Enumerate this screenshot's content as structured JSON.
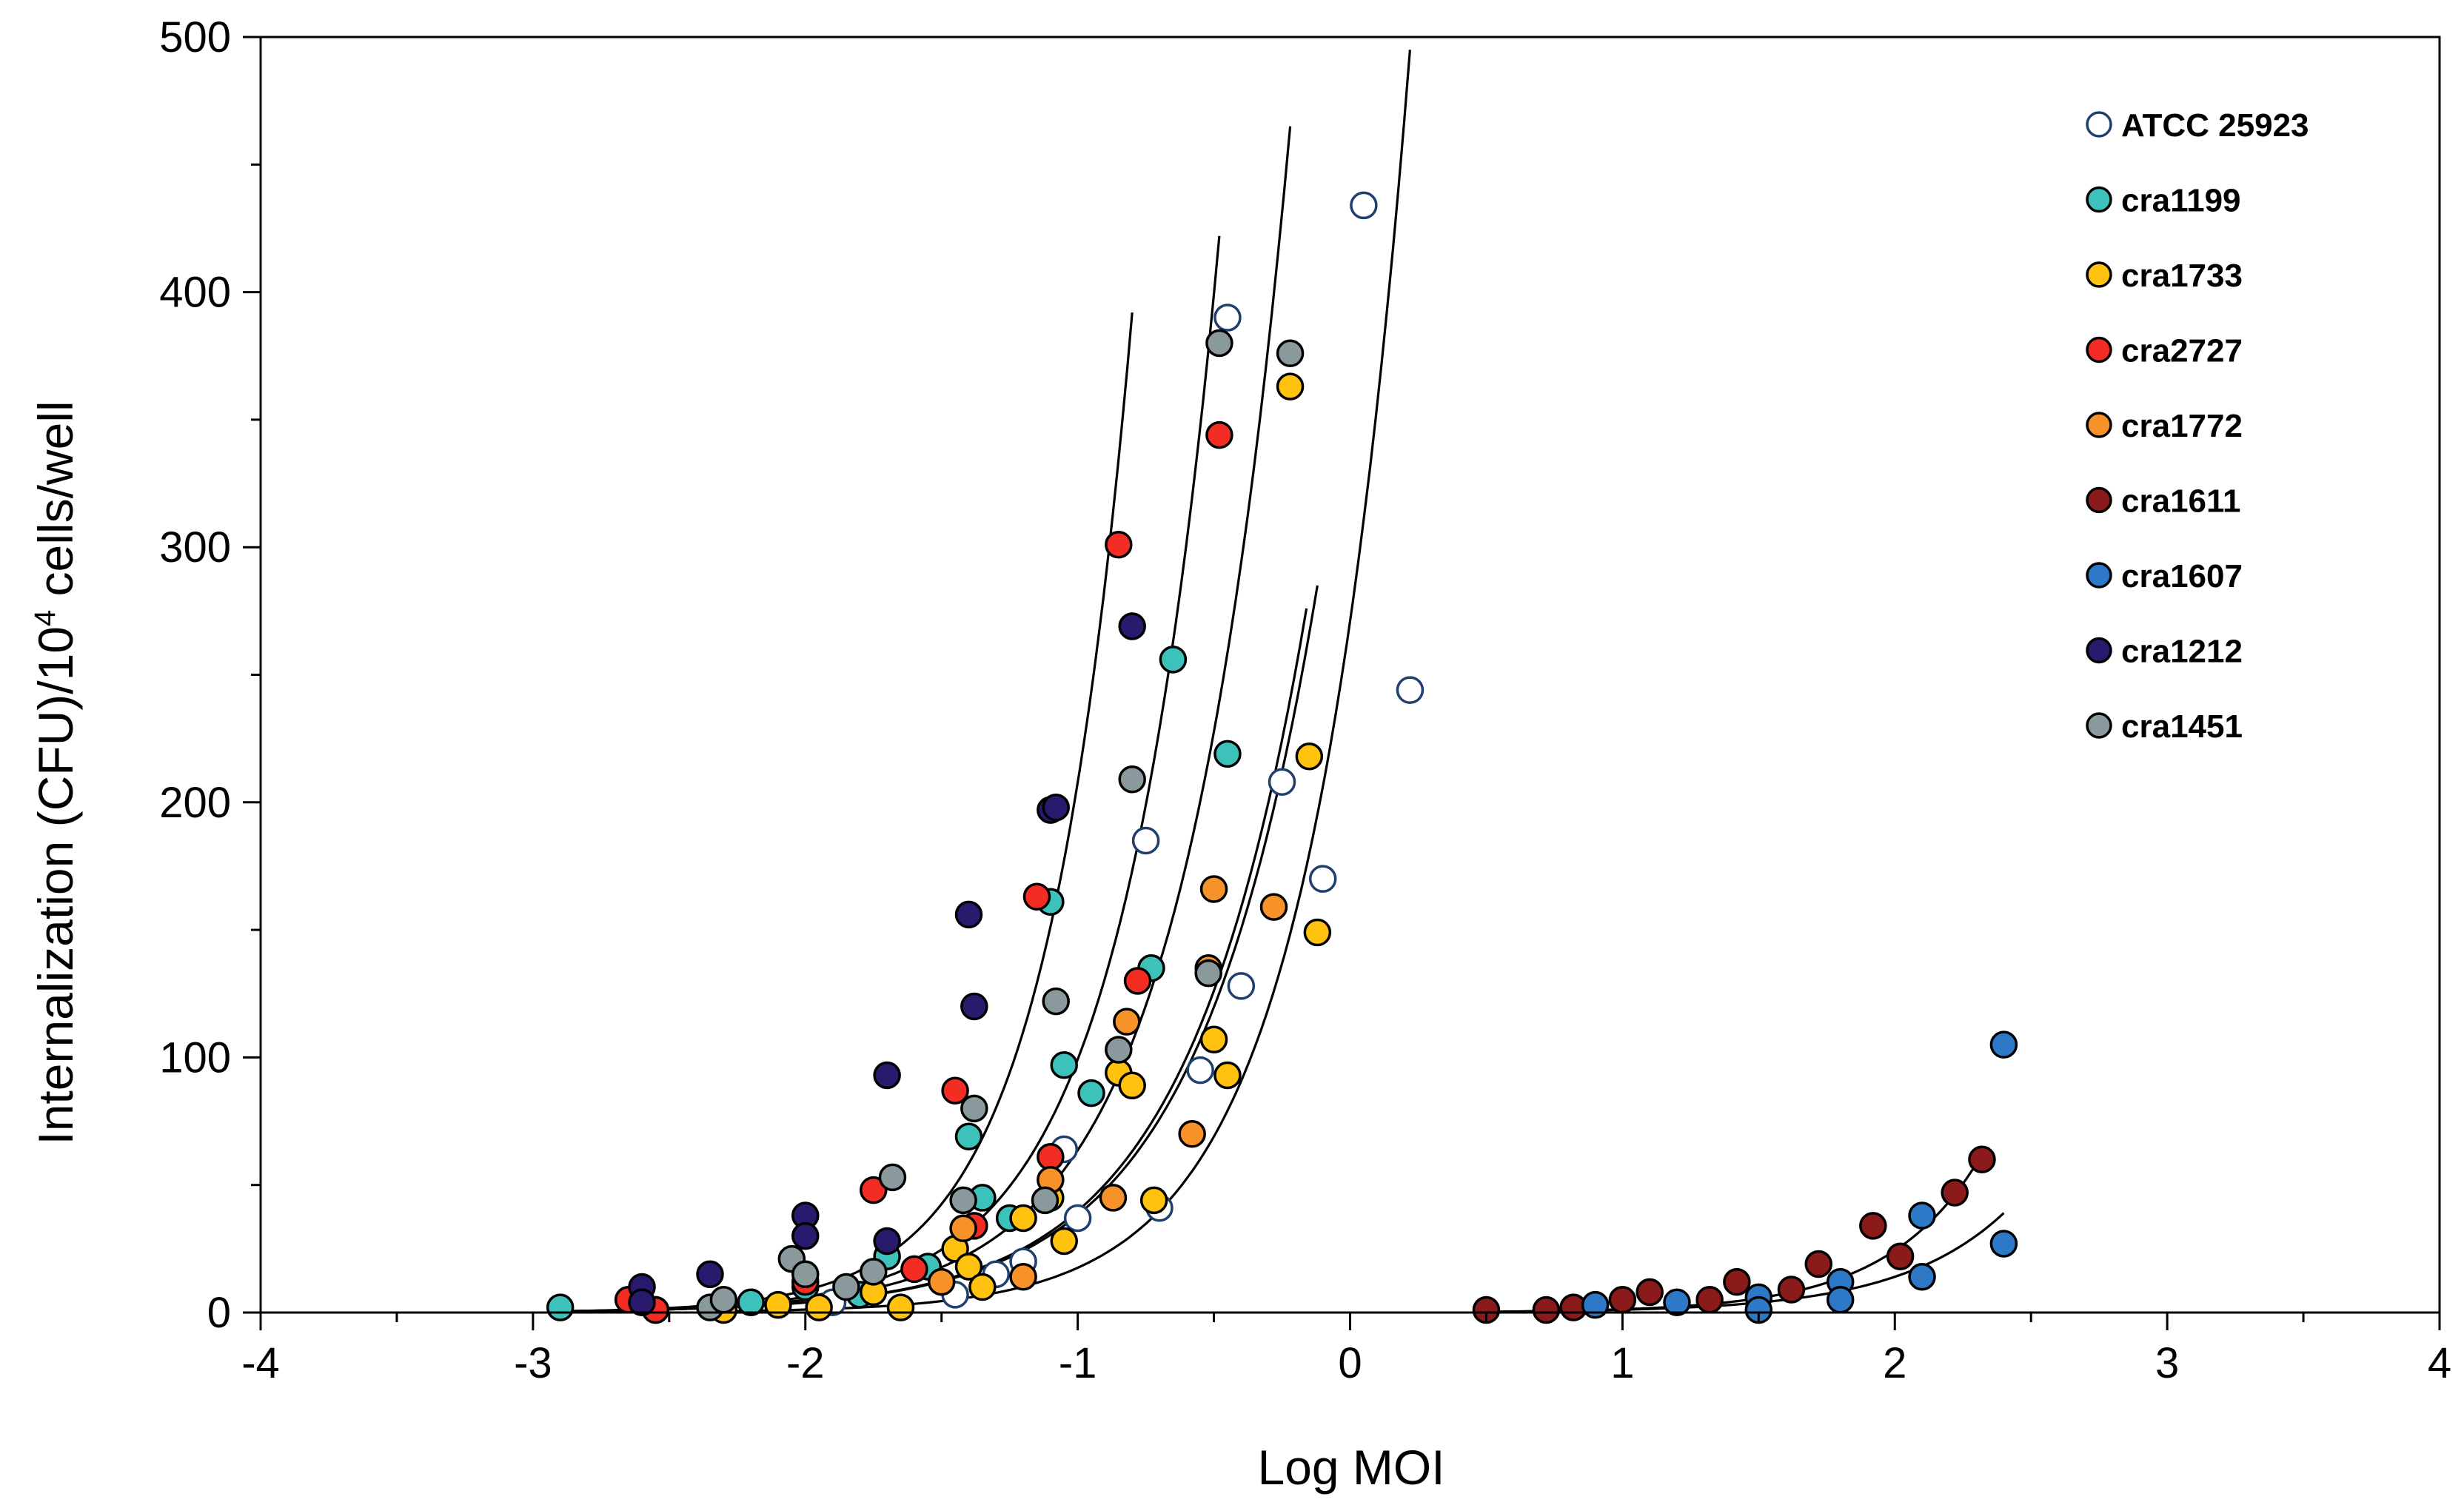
{
  "chart_data": {
    "type": "scatter",
    "xlabel": "Log MOI",
    "ylabel": {
      "prefix": "Internalization (CFU)/10",
      "superscript": "4",
      "suffix": " cells/well"
    },
    "xlim": [
      -4,
      4
    ],
    "ylim": [
      0,
      500
    ],
    "x_ticks": [
      -4,
      -3,
      -2,
      -1,
      0,
      1,
      2,
      3,
      4
    ],
    "x_tick_labels": [
      "-4",
      "-3",
      "-2",
      "-1",
      "0",
      "1",
      "2",
      "3",
      "4"
    ],
    "y_ticks": [
      0,
      100,
      200,
      300,
      400,
      500
    ],
    "y_tick_labels": [
      "0",
      "100",
      "200",
      "300",
      "400",
      "500"
    ],
    "grid": false,
    "legend_position": "top-right",
    "series": [
      {
        "name": "ATCC 25923",
        "color": "#ffffff",
        "stroke": "#1f3f6e",
        "points": [
          [
            -1.45,
            7
          ],
          [
            -1.3,
            15
          ],
          [
            -1.2,
            20
          ],
          [
            -1.05,
            64
          ],
          [
            -1.0,
            37
          ],
          [
            -0.75,
            185
          ],
          [
            -0.7,
            41
          ],
          [
            -0.55,
            95
          ],
          [
            -0.45,
            390
          ],
          [
            -0.4,
            128
          ],
          [
            -0.25,
            208
          ],
          [
            -0.1,
            170
          ],
          [
            0.05,
            434
          ],
          [
            0.22,
            244
          ],
          [
            -2.3,
            2
          ],
          [
            -1.9,
            4
          ]
        ]
      },
      {
        "name": "cra1199",
        "color": "#3cc2bb",
        "stroke": "#000000",
        "points": [
          [
            -2.9,
            2
          ],
          [
            -2.55,
            1
          ],
          [
            -2.2,
            4
          ],
          [
            -2.0,
            10
          ],
          [
            -1.8,
            7
          ],
          [
            -1.7,
            22
          ],
          [
            -1.55,
            18
          ],
          [
            -1.4,
            69
          ],
          [
            -1.35,
            45
          ],
          [
            -1.25,
            37
          ],
          [
            -1.1,
            161
          ],
          [
            -1.05,
            97
          ],
          [
            -0.95,
            86
          ],
          [
            -0.73,
            135
          ],
          [
            -0.65,
            256
          ],
          [
            -0.45,
            219
          ]
        ]
      },
      {
        "name": "cra1733",
        "color": "#ffc20e",
        "stroke": "#000000",
        "points": [
          [
            -2.3,
            1
          ],
          [
            -2.1,
            3
          ],
          [
            -1.95,
            2
          ],
          [
            -1.75,
            8
          ],
          [
            -1.65,
            2
          ],
          [
            -1.45,
            25
          ],
          [
            -1.4,
            18
          ],
          [
            -1.35,
            10
          ],
          [
            -1.2,
            37
          ],
          [
            -1.1,
            45
          ],
          [
            -1.05,
            28
          ],
          [
            -0.85,
            94
          ],
          [
            -0.8,
            89
          ],
          [
            -0.72,
            44
          ],
          [
            -0.5,
            107
          ],
          [
            -0.45,
            93
          ],
          [
            -0.22,
            363
          ],
          [
            -0.15,
            218
          ],
          [
            -0.12,
            149
          ]
        ]
      },
      {
        "name": "cra2727",
        "color": "#f32c24",
        "stroke": "#000000",
        "points": [
          [
            -2.65,
            5
          ],
          [
            -2.55,
            1
          ],
          [
            -2.0,
            12
          ],
          [
            -1.75,
            48
          ],
          [
            -1.6,
            17
          ],
          [
            -1.45,
            87
          ],
          [
            -1.38,
            34
          ],
          [
            -1.15,
            163
          ],
          [
            -1.1,
            61
          ],
          [
            -0.85,
            301
          ],
          [
            -0.78,
            130
          ],
          [
            -0.48,
            344
          ]
        ]
      },
      {
        "name": "cra1772",
        "color": "#f7922a",
        "stroke": "#000000",
        "points": [
          [
            -1.5,
            12
          ],
          [
            -1.42,
            33
          ],
          [
            -1.2,
            14
          ],
          [
            -1.1,
            52
          ],
          [
            -0.87,
            45
          ],
          [
            -0.82,
            114
          ],
          [
            -0.58,
            70
          ],
          [
            -0.52,
            135
          ],
          [
            -0.5,
            166
          ],
          [
            -0.28,
            159
          ]
        ]
      },
      {
        "name": "cra1611",
        "color": "#8b1a1a",
        "stroke": "#000000",
        "points": [
          [
            0.5,
            1
          ],
          [
            0.72,
            1
          ],
          [
            0.82,
            2
          ],
          [
            1.0,
            5
          ],
          [
            1.1,
            8
          ],
          [
            1.32,
            5
          ],
          [
            1.42,
            12
          ],
          [
            1.62,
            9
          ],
          [
            1.72,
            19
          ],
          [
            1.92,
            34
          ],
          [
            2.02,
            22
          ],
          [
            2.22,
            47
          ],
          [
            2.32,
            60
          ]
        ]
      },
      {
        "name": "cra1607",
        "color": "#2e78c8",
        "stroke": "#000000",
        "points": [
          [
            0.9,
            3
          ],
          [
            1.2,
            4
          ],
          [
            1.5,
            6
          ],
          [
            1.5,
            1
          ],
          [
            1.8,
            12
          ],
          [
            1.8,
            5
          ],
          [
            2.1,
            38
          ],
          [
            2.1,
            14
          ],
          [
            2.4,
            105
          ],
          [
            2.4,
            27
          ]
        ]
      },
      {
        "name": "cra1212",
        "color": "#2a1a6e",
        "stroke": "#000000",
        "points": [
          [
            -2.6,
            10
          ],
          [
            -2.6,
            4
          ],
          [
            -2.35,
            15
          ],
          [
            -2.0,
            38
          ],
          [
            -2.0,
            30
          ],
          [
            -1.7,
            93
          ],
          [
            -1.7,
            28
          ],
          [
            -1.4,
            156
          ],
          [
            -1.38,
            120
          ],
          [
            -1.1,
            197
          ],
          [
            -1.08,
            198
          ],
          [
            -0.8,
            269
          ]
        ]
      },
      {
        "name": "cra1451",
        "color": "#8a9a9c",
        "stroke": "#000000",
        "points": [
          [
            -2.35,
            2
          ],
          [
            -2.3,
            5
          ],
          [
            -2.05,
            21
          ],
          [
            -2.0,
            15
          ],
          [
            -1.85,
            10
          ],
          [
            -1.75,
            16
          ],
          [
            -1.68,
            53
          ],
          [
            -1.42,
            44
          ],
          [
            -1.38,
            80
          ],
          [
            -1.12,
            44
          ],
          [
            -1.08,
            122
          ],
          [
            -0.85,
            103
          ],
          [
            -0.8,
            209
          ],
          [
            -0.52,
            133
          ],
          [
            -0.48,
            380
          ],
          [
            -0.22,
            376
          ]
        ]
      }
    ],
    "fit_curves": [
      {
        "x_start": -2.9,
        "x_end": -0.8,
        "y_start": 0.5,
        "y_end": 392
      },
      {
        "x_start": -2.9,
        "x_end": -0.48,
        "y_start": 0.5,
        "y_end": 422
      },
      {
        "x_start": -2.9,
        "x_end": -0.22,
        "y_start": 0.5,
        "y_end": 465
      },
      {
        "x_start": -2.9,
        "x_end": -0.12,
        "y_start": 0.5,
        "y_end": 285
      },
      {
        "x_start": -2.9,
        "x_end": -0.16,
        "y_start": 0.5,
        "y_end": 276
      },
      {
        "x_start": -2.3,
        "x_end": 0.22,
        "y_start": 0.5,
        "y_end": 495
      },
      {
        "x_start": 0.5,
        "x_end": 2.32,
        "y_start": 0.3,
        "y_end": 62
      },
      {
        "x_start": 0.5,
        "x_end": 2.4,
        "y_start": 0.3,
        "y_end": 39
      }
    ]
  }
}
